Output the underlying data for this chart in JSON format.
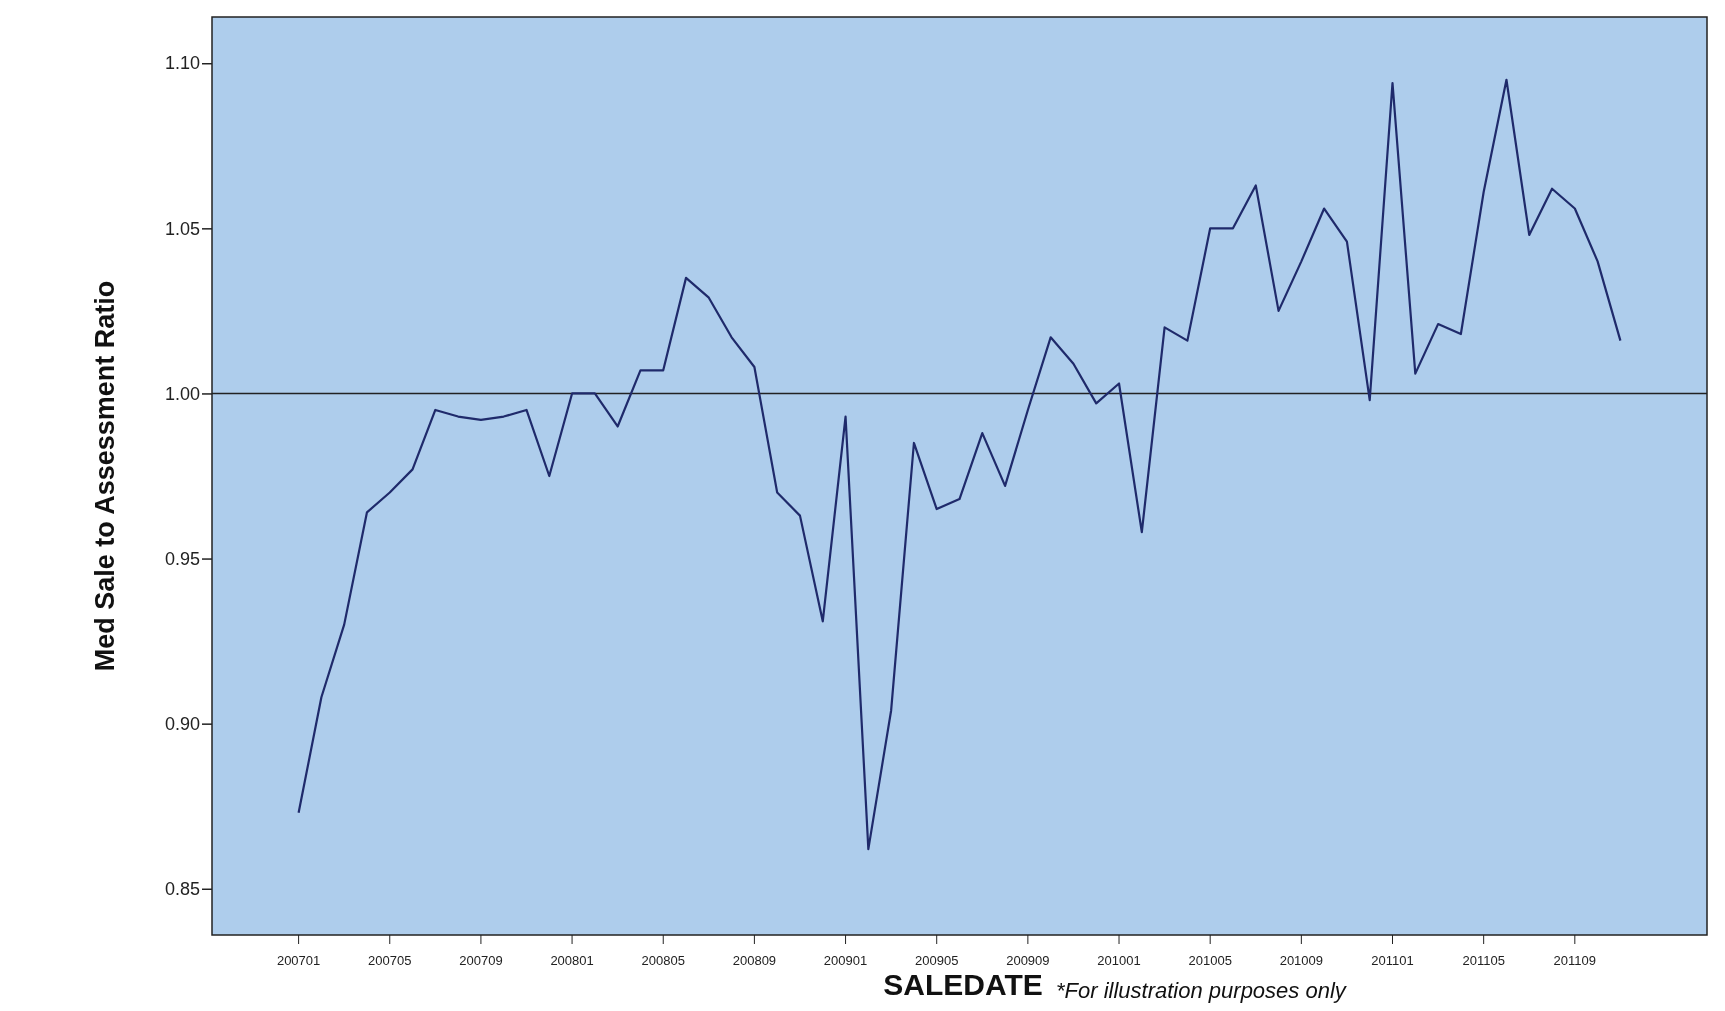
{
  "chart_data": {
    "type": "line",
    "xlabel": "SALEDATE",
    "ylabel": "Med Sale to Assessment Ratio",
    "annotations": [
      "*For illustration purposes only"
    ],
    "categories": [
      "200701",
      null,
      null,
      null,
      "200705",
      null,
      null,
      null,
      "200709",
      null,
      null,
      null,
      "200801",
      null,
      null,
      null,
      "200805",
      null,
      null,
      null,
      "200809",
      null,
      null,
      null,
      "200901",
      null,
      null,
      null,
      "200905",
      null,
      null,
      null,
      "200909",
      null,
      null,
      null,
      "201001",
      null,
      null,
      null,
      "201005",
      null,
      null,
      null,
      "201009",
      null,
      null,
      null,
      "201101",
      null,
      null,
      null,
      "201105",
      null,
      null,
      null,
      "201109",
      null,
      null
    ],
    "series": [
      {
        "color": "#1f2a6b",
        "values": [
          0.873,
          0.908,
          0.93,
          0.964,
          0.97,
          0.977,
          0.995,
          0.993,
          0.992,
          0.993,
          0.995,
          0.975,
          1.0,
          1.0,
          0.99,
          1.007,
          1.007,
          1.035,
          1.029,
          1.017,
          1.008,
          0.97,
          0.963,
          0.931,
          0.993,
          0.862,
          0.904,
          0.985,
          0.965,
          0.968,
          0.988,
          0.972,
          0.995,
          1.017,
          1.009,
          0.997,
          1.003,
          0.958,
          1.02,
          1.016,
          1.05,
          1.05,
          1.063,
          1.025,
          1.04,
          1.056,
          1.046,
          0.998,
          1.094,
          1.006,
          1.021,
          1.018,
          1.061,
          1.095,
          1.048,
          1.062,
          1.056,
          1.04,
          1.016
        ]
      }
    ],
    "ylim": [
      0.836,
      1.114
    ],
    "yticks": [
      {
        "value": 0.85,
        "label": "0.85"
      },
      {
        "value": 0.9,
        "label": "0.90"
      },
      {
        "value": 0.95,
        "label": "0.95"
      },
      {
        "value": 1.0,
        "label": "1.00"
      },
      {
        "value": 1.05,
        "label": "1.05"
      },
      {
        "value": 1.1,
        "label": "1.10"
      }
    ],
    "ref_lines": [
      {
        "axis": "y",
        "value": 1.0,
        "color": "#222222"
      }
    ],
    "grid": false,
    "marker": "none",
    "line_style": "solid"
  }
}
